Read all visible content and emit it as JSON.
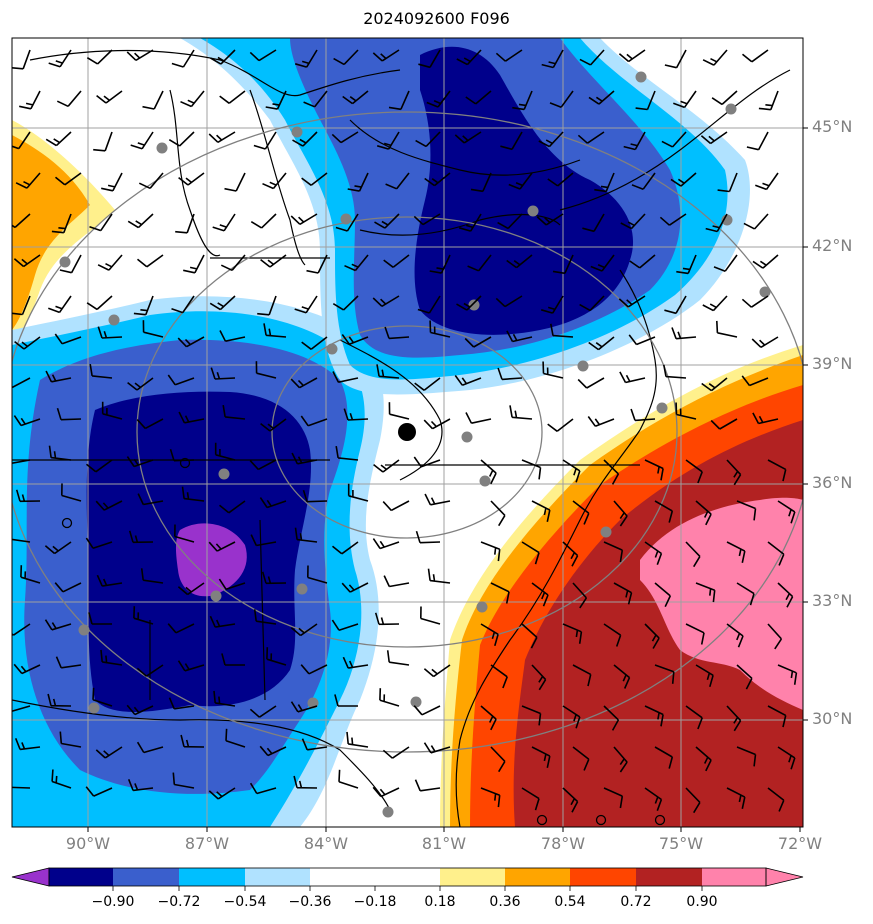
{
  "title": "2024092600 F096",
  "axes": {
    "lat_labels": [
      "45°N",
      "42°N",
      "39°N",
      "36°N",
      "33°N",
      "30°N"
    ],
    "lon_labels": [
      "90°W",
      "87°W",
      "84°W",
      "81°W",
      "78°W",
      "75°W",
      "72°W"
    ]
  },
  "colorbar": {
    "labels": [
      "−0.90",
      "−0.72",
      "−0.54",
      "−0.36",
      "−0.18",
      "0.18",
      "0.36",
      "0.54",
      "0.72",
      "0.90"
    ],
    "colors": [
      "#9932cc",
      "#00008b",
      "#3a5fcd",
      "#00bfff",
      "#b0e2ff",
      "#ffffff",
      "#fff08c",
      "#ffa500",
      "#ff4500",
      "#b22222",
      "#ff82ab"
    ]
  },
  "colors": {
    "grid": "#a0a0a0",
    "range_rings": "#808080",
    "stations": "#808080",
    "center_marker": "#000000"
  },
  "icons": [
    "wind-barb-icon",
    "station-dot-icon",
    "center-marker-icon",
    "open-circle-icon"
  ]
}
